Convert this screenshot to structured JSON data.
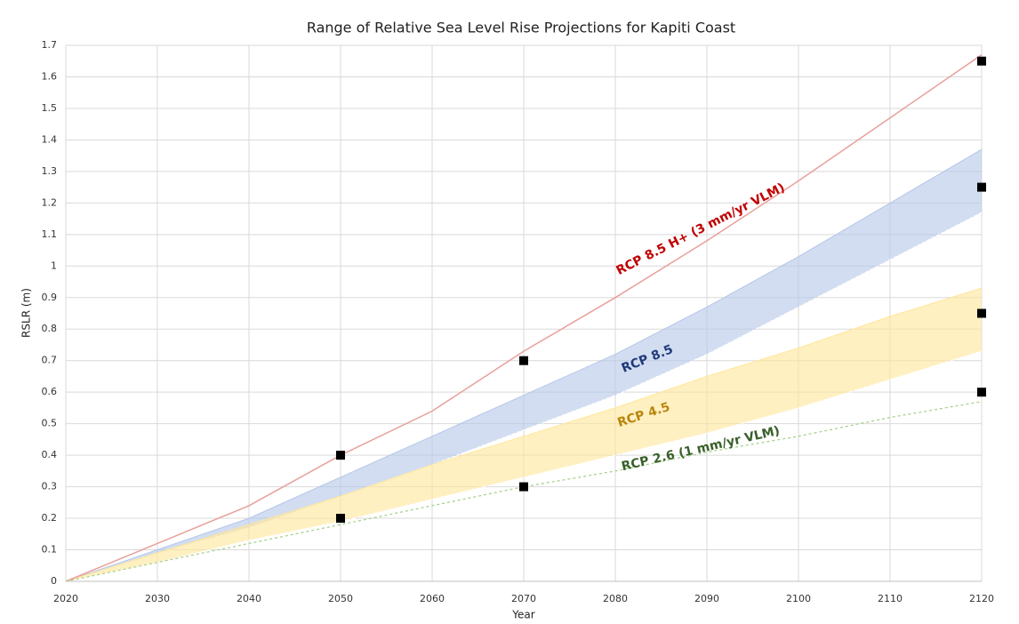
{
  "chart_data": {
    "type": "line",
    "title": "Range of Relative Sea Level Rise Projections for Kapiti Coast",
    "x_label": "Year",
    "y_label": "RSLR (m)",
    "x": [
      2020,
      2030,
      2040,
      2050,
      2060,
      2070,
      2080,
      2090,
      2100,
      2110,
      2120
    ],
    "xlim": [
      2020,
      2120
    ],
    "xticks": [
      2020,
      2030,
      2040,
      2050,
      2060,
      2070,
      2080,
      2090,
      2100,
      2110,
      2120
    ],
    "ylim": [
      0,
      1.7
    ],
    "yticks": [
      0,
      0.1,
      0.2,
      0.3,
      0.4,
      0.5,
      0.6,
      0.7,
      0.8,
      0.9,
      1,
      1.1,
      1.2,
      1.3,
      1.4,
      1.5,
      1.6,
      1.7
    ],
    "grid": true,
    "series": [
      {
        "name": "RCP 8.5 H+ (3 mm/yr VLM)",
        "color": "#e8a09a",
        "label_color": "#c00000",
        "style": "solid",
        "values": [
          0,
          0.12,
          0.24,
          0.4,
          0.54,
          0.73,
          0.9,
          1.08,
          1.27,
          1.47,
          1.67
        ]
      },
      {
        "name": "RCP 8.5",
        "color": "#b4c7e7",
        "label_color": "#1f3a7a",
        "style": "band",
        "upper": [
          0,
          0.1,
          0.2,
          0.33,
          0.46,
          0.59,
          0.72,
          0.87,
          1.03,
          1.2,
          1.37
        ],
        "lower": [
          0,
          0.09,
          0.17,
          0.27,
          0.37,
          0.48,
          0.59,
          0.72,
          0.87,
          1.02,
          1.17
        ]
      },
      {
        "name": "RCP 4.5",
        "color": "#ffe699",
        "label_color": "#b8860b",
        "style": "band",
        "upper": [
          0,
          0.09,
          0.18,
          0.27,
          0.37,
          0.46,
          0.55,
          0.65,
          0.74,
          0.84,
          0.93
        ],
        "lower": [
          0,
          0.06,
          0.13,
          0.19,
          0.26,
          0.33,
          0.4,
          0.47,
          0.55,
          0.64,
          0.73
        ]
      },
      {
        "name": "RCP 2.6 (1 mm/yr VLM)",
        "color": "#a9d18e",
        "label_color": "#38602a",
        "style": "dashed",
        "values": [
          0,
          0.06,
          0.12,
          0.18,
          0.24,
          0.3,
          0.35,
          0.41,
          0.46,
          0.52,
          0.57
        ]
      }
    ],
    "points": {
      "color": "#000000",
      "x": [
        2050,
        2050,
        2070,
        2070,
        2120,
        2120,
        2120,
        2120
      ],
      "values": [
        0.4,
        0.2,
        0.7,
        0.3,
        1.65,
        1.25,
        0.85,
        0.6
      ]
    }
  }
}
